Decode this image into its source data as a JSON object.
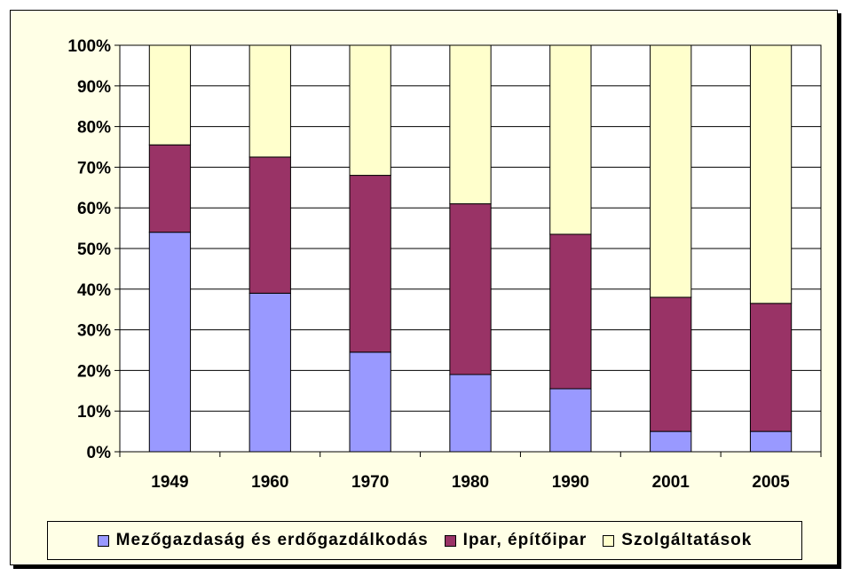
{
  "chart_data": {
    "type": "bar",
    "stacked": true,
    "categories": [
      "1949",
      "1960",
      "1970",
      "1980",
      "1990",
      "2001",
      "2005"
    ],
    "series": [
      {
        "name": "Mezőgazdaság és erdőgazdálkodás",
        "color": "#9999ff",
        "values": [
          54,
          39,
          24.5,
          19,
          15.5,
          5,
          5
        ]
      },
      {
        "name": "Ipar, építőipar",
        "color": "#993366",
        "values": [
          21.5,
          33.5,
          43.5,
          42,
          38,
          33,
          31.5
        ]
      },
      {
        "name": "Szolgáltatások",
        "color": "#ffffcc",
        "values": [
          24.5,
          27.5,
          32,
          39,
          46.5,
          62,
          63.5
        ]
      }
    ],
    "yticks": [
      "0%",
      "10%",
      "20%",
      "30%",
      "40%",
      "50%",
      "60%",
      "70%",
      "80%",
      "90%",
      "100%"
    ],
    "ylim": [
      0,
      100
    ],
    "grid": true,
    "legend": "bottom",
    "plot_background": "#ffffff",
    "frame_background": "#ffffe6"
  }
}
